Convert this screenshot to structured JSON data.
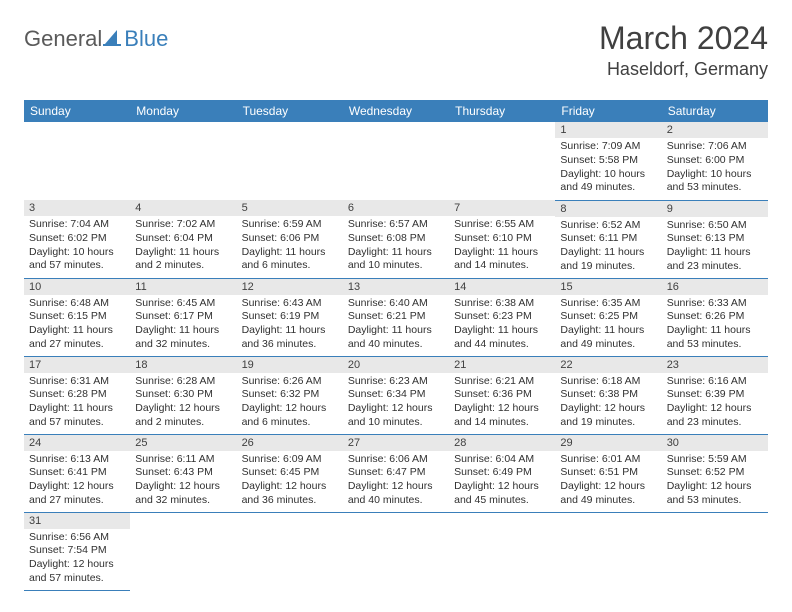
{
  "logo": {
    "part1": "General",
    "part2": "Blue"
  },
  "title": "March 2024",
  "location": "Haseldorf, Germany",
  "colors": {
    "header_bg": "#3a7fba",
    "header_text": "#ffffff",
    "daynum_bg": "#e8e8e8",
    "border": "#3a7fba",
    "text": "#303030",
    "logo_gray": "#5a5a5a",
    "logo_blue": "#3a7fba"
  },
  "day_headers": [
    "Sunday",
    "Monday",
    "Tuesday",
    "Wednesday",
    "Thursday",
    "Friday",
    "Saturday"
  ],
  "weeks": [
    [
      null,
      null,
      null,
      null,
      null,
      {
        "n": "1",
        "sr": "Sunrise: 7:09 AM",
        "ss": "Sunset: 5:58 PM",
        "d1": "Daylight: 10 hours",
        "d2": "and 49 minutes."
      },
      {
        "n": "2",
        "sr": "Sunrise: 7:06 AM",
        "ss": "Sunset: 6:00 PM",
        "d1": "Daylight: 10 hours",
        "d2": "and 53 minutes."
      }
    ],
    [
      {
        "n": "3",
        "sr": "Sunrise: 7:04 AM",
        "ss": "Sunset: 6:02 PM",
        "d1": "Daylight: 10 hours",
        "d2": "and 57 minutes."
      },
      {
        "n": "4",
        "sr": "Sunrise: 7:02 AM",
        "ss": "Sunset: 6:04 PM",
        "d1": "Daylight: 11 hours",
        "d2": "and 2 minutes."
      },
      {
        "n": "5",
        "sr": "Sunrise: 6:59 AM",
        "ss": "Sunset: 6:06 PM",
        "d1": "Daylight: 11 hours",
        "d2": "and 6 minutes."
      },
      {
        "n": "6",
        "sr": "Sunrise: 6:57 AM",
        "ss": "Sunset: 6:08 PM",
        "d1": "Daylight: 11 hours",
        "d2": "and 10 minutes."
      },
      {
        "n": "7",
        "sr": "Sunrise: 6:55 AM",
        "ss": "Sunset: 6:10 PM",
        "d1": "Daylight: 11 hours",
        "d2": "and 14 minutes."
      },
      {
        "n": "8",
        "sr": "Sunrise: 6:52 AM",
        "ss": "Sunset: 6:11 PM",
        "d1": "Daylight: 11 hours",
        "d2": "and 19 minutes."
      },
      {
        "n": "9",
        "sr": "Sunrise: 6:50 AM",
        "ss": "Sunset: 6:13 PM",
        "d1": "Daylight: 11 hours",
        "d2": "and 23 minutes."
      }
    ],
    [
      {
        "n": "10",
        "sr": "Sunrise: 6:48 AM",
        "ss": "Sunset: 6:15 PM",
        "d1": "Daylight: 11 hours",
        "d2": "and 27 minutes."
      },
      {
        "n": "11",
        "sr": "Sunrise: 6:45 AM",
        "ss": "Sunset: 6:17 PM",
        "d1": "Daylight: 11 hours",
        "d2": "and 32 minutes."
      },
      {
        "n": "12",
        "sr": "Sunrise: 6:43 AM",
        "ss": "Sunset: 6:19 PM",
        "d1": "Daylight: 11 hours",
        "d2": "and 36 minutes."
      },
      {
        "n": "13",
        "sr": "Sunrise: 6:40 AM",
        "ss": "Sunset: 6:21 PM",
        "d1": "Daylight: 11 hours",
        "d2": "and 40 minutes."
      },
      {
        "n": "14",
        "sr": "Sunrise: 6:38 AM",
        "ss": "Sunset: 6:23 PM",
        "d1": "Daylight: 11 hours",
        "d2": "and 44 minutes."
      },
      {
        "n": "15",
        "sr": "Sunrise: 6:35 AM",
        "ss": "Sunset: 6:25 PM",
        "d1": "Daylight: 11 hours",
        "d2": "and 49 minutes."
      },
      {
        "n": "16",
        "sr": "Sunrise: 6:33 AM",
        "ss": "Sunset: 6:26 PM",
        "d1": "Daylight: 11 hours",
        "d2": "and 53 minutes."
      }
    ],
    [
      {
        "n": "17",
        "sr": "Sunrise: 6:31 AM",
        "ss": "Sunset: 6:28 PM",
        "d1": "Daylight: 11 hours",
        "d2": "and 57 minutes."
      },
      {
        "n": "18",
        "sr": "Sunrise: 6:28 AM",
        "ss": "Sunset: 6:30 PM",
        "d1": "Daylight: 12 hours",
        "d2": "and 2 minutes."
      },
      {
        "n": "19",
        "sr": "Sunrise: 6:26 AM",
        "ss": "Sunset: 6:32 PM",
        "d1": "Daylight: 12 hours",
        "d2": "and 6 minutes."
      },
      {
        "n": "20",
        "sr": "Sunrise: 6:23 AM",
        "ss": "Sunset: 6:34 PM",
        "d1": "Daylight: 12 hours",
        "d2": "and 10 minutes."
      },
      {
        "n": "21",
        "sr": "Sunrise: 6:21 AM",
        "ss": "Sunset: 6:36 PM",
        "d1": "Daylight: 12 hours",
        "d2": "and 14 minutes."
      },
      {
        "n": "22",
        "sr": "Sunrise: 6:18 AM",
        "ss": "Sunset: 6:38 PM",
        "d1": "Daylight: 12 hours",
        "d2": "and 19 minutes."
      },
      {
        "n": "23",
        "sr": "Sunrise: 6:16 AM",
        "ss": "Sunset: 6:39 PM",
        "d1": "Daylight: 12 hours",
        "d2": "and 23 minutes."
      }
    ],
    [
      {
        "n": "24",
        "sr": "Sunrise: 6:13 AM",
        "ss": "Sunset: 6:41 PM",
        "d1": "Daylight: 12 hours",
        "d2": "and 27 minutes."
      },
      {
        "n": "25",
        "sr": "Sunrise: 6:11 AM",
        "ss": "Sunset: 6:43 PM",
        "d1": "Daylight: 12 hours",
        "d2": "and 32 minutes."
      },
      {
        "n": "26",
        "sr": "Sunrise: 6:09 AM",
        "ss": "Sunset: 6:45 PM",
        "d1": "Daylight: 12 hours",
        "d2": "and 36 minutes."
      },
      {
        "n": "27",
        "sr": "Sunrise: 6:06 AM",
        "ss": "Sunset: 6:47 PM",
        "d1": "Daylight: 12 hours",
        "d2": "and 40 minutes."
      },
      {
        "n": "28",
        "sr": "Sunrise: 6:04 AM",
        "ss": "Sunset: 6:49 PM",
        "d1": "Daylight: 12 hours",
        "d2": "and 45 minutes."
      },
      {
        "n": "29",
        "sr": "Sunrise: 6:01 AM",
        "ss": "Sunset: 6:51 PM",
        "d1": "Daylight: 12 hours",
        "d2": "and 49 minutes."
      },
      {
        "n": "30",
        "sr": "Sunrise: 5:59 AM",
        "ss": "Sunset: 6:52 PM",
        "d1": "Daylight: 12 hours",
        "d2": "and 53 minutes."
      }
    ],
    [
      {
        "n": "31",
        "sr": "Sunrise: 6:56 AM",
        "ss": "Sunset: 7:54 PM",
        "d1": "Daylight: 12 hours",
        "d2": "and 57 minutes."
      },
      null,
      null,
      null,
      null,
      null,
      null
    ]
  ]
}
